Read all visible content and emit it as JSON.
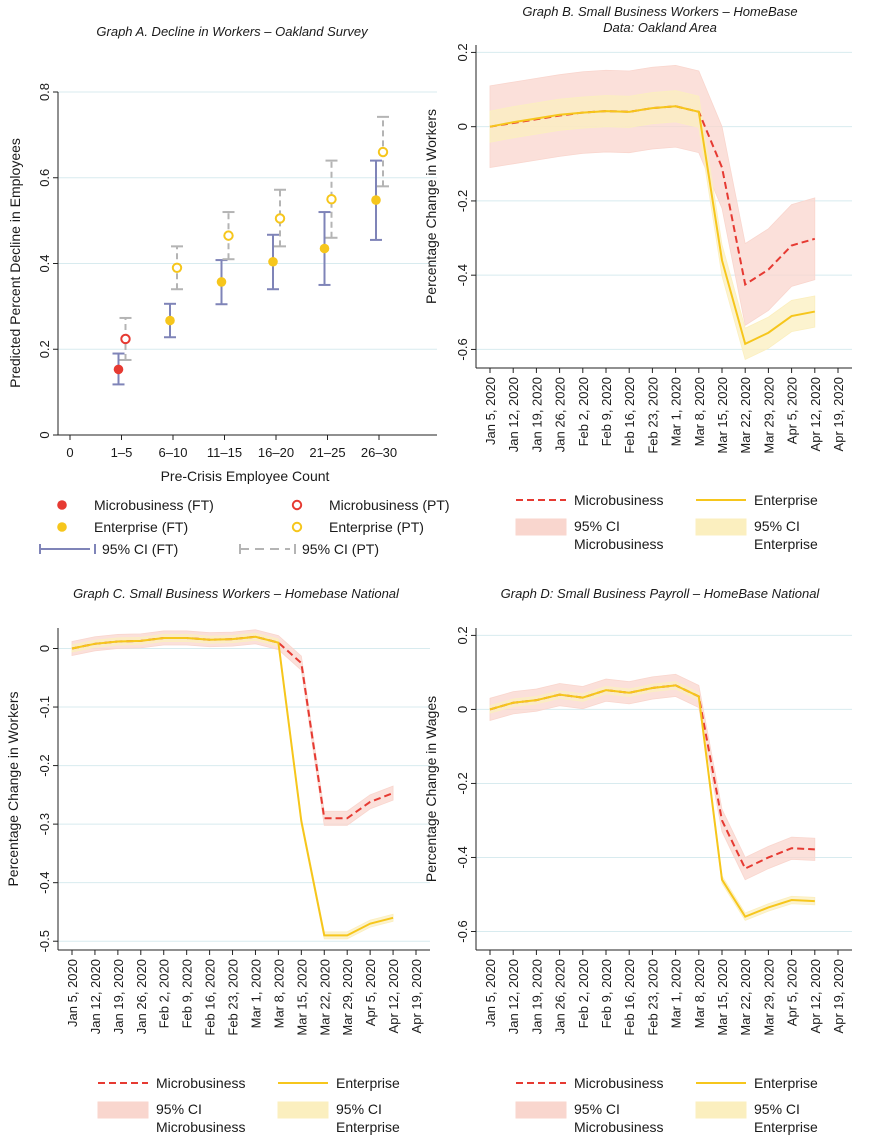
{
  "colors": {
    "micro": "#e63a32",
    "enterprise": "#f6c61c",
    "micro_band": "#f9d6ce",
    "enterprise_band": "#fbefbf",
    "ci_ft": "#7f84b8",
    "ci_pt": "#b4b4b4",
    "grid": "#d8ebef"
  },
  "chart_data": [
    {
      "id": "A",
      "type": "scatter",
      "title": "Graph A. Decline in Workers – Oakland Survey",
      "xlabel": "Pre-Crisis Employee Count",
      "ylabel": "Predicted Percent Decline in Employees",
      "ylim": [
        0,
        0.8
      ],
      "categories": [
        "0",
        "1–5",
        "6–10",
        "11–15",
        "16–20",
        "21–25",
        "26–30"
      ],
      "yticks": [
        "0",
        "0.2",
        "0.4",
        "0.6",
        "0.8"
      ],
      "grid": true,
      "series": [
        {
          "name": "Microbusiness (FT)",
          "marker": "filled",
          "color": "micro",
          "points": [
            {
              "x": 1,
              "y": 0.153,
              "lo": 0.118,
              "hi": 0.19
            }
          ]
        },
        {
          "name": "Microbusiness (PT)",
          "marker": "hollow",
          "color": "micro",
          "points": [
            {
              "x": 1,
              "y": 0.224,
              "lo": 0.175,
              "hi": 0.273
            }
          ]
        },
        {
          "name": "Enterprise (FT)",
          "marker": "filled",
          "color": "enterprise",
          "points": [
            {
              "x": 2,
              "y": 0.267,
              "lo": 0.228,
              "hi": 0.306
            },
            {
              "x": 3,
              "y": 0.357,
              "lo": 0.305,
              "hi": 0.408
            },
            {
              "x": 4,
              "y": 0.404,
              "lo": 0.34,
              "hi": 0.467
            },
            {
              "x": 5,
              "y": 0.435,
              "lo": 0.35,
              "hi": 0.52
            },
            {
              "x": 6,
              "y": 0.548,
              "lo": 0.455,
              "hi": 0.64
            }
          ]
        },
        {
          "name": "Enterprise (PT)",
          "marker": "hollow",
          "color": "enterprise",
          "points": [
            {
              "x": 2,
              "y": 0.39,
              "lo": 0.34,
              "hi": 0.44
            },
            {
              "x": 3,
              "y": 0.465,
              "lo": 0.41,
              "hi": 0.52
            },
            {
              "x": 4,
              "y": 0.505,
              "lo": 0.44,
              "hi": 0.572
            },
            {
              "x": 5,
              "y": 0.55,
              "lo": 0.46,
              "hi": 0.64
            },
            {
              "x": 6,
              "y": 0.66,
              "lo": 0.58,
              "hi": 0.742
            }
          ]
        }
      ],
      "legend": {
        "position": "bottom",
        "items": [
          "Microbusiness (FT)",
          "Microbusiness (PT)",
          "Enterprise (FT)",
          "Enterprise (PT)",
          "95% CI (FT)",
          "95% CI (PT)"
        ]
      }
    },
    {
      "id": "B",
      "type": "line",
      "title": "Graph B. Small Business Workers – HomeBase",
      "subtitle": "Data: Oakland Area",
      "xlabel": "",
      "ylabel": "Percentage Change in Workers",
      "ylim": [
        -0.65,
        0.22
      ],
      "yticks": [
        -0.6,
        -0.4,
        -0.2,
        0,
        0.2
      ],
      "ytick_labels": [
        "-0.6",
        "-0.4",
        "-0.2",
        "0",
        "0.2"
      ],
      "grid": true,
      "x": [
        "Jan 5, 2020",
        "Jan 12, 2020",
        "Jan 19, 2020",
        "Jan 26, 2020",
        "Feb 2, 2020",
        "Feb 9, 2020",
        "Feb 16, 2020",
        "Feb 23, 2020",
        "Mar 1, 2020",
        "Mar 8, 2020",
        "Mar 15, 2020",
        "Mar 22, 2020",
        "Mar 29, 2020",
        "Apr 5, 2020",
        "Apr 12, 2020",
        "Apr 19, 2020"
      ],
      "series": [
        {
          "name": "Microbusiness",
          "style": "dashed",
          "color": "micro",
          "values": [
            0.0,
            0.01,
            0.02,
            0.03,
            0.038,
            0.042,
            0.04,
            0.05,
            0.055,
            0.04,
            -0.11,
            -0.425,
            -0.385,
            -0.32,
            -0.302,
            null
          ],
          "ci_half": 0.11
        },
        {
          "name": "Enterprise",
          "style": "solid",
          "color": "enterprise",
          "values": [
            0.0,
            0.012,
            0.022,
            0.032,
            0.038,
            0.042,
            0.04,
            0.05,
            0.055,
            0.04,
            -0.36,
            -0.585,
            -0.555,
            -0.51,
            -0.498,
            null
          ],
          "ci_half": 0.042
        }
      ],
      "legend": {
        "position": "bottom",
        "items": [
          "Microbusiness",
          "Enterprise",
          "95% CI",
          "Microbusiness",
          "95% CI",
          "Enterprise"
        ]
      }
    },
    {
      "id": "C",
      "type": "line",
      "title": "Graph C. Small Business Workers – Homebase National",
      "xlabel": "",
      "ylabel": "Percentage Change in Workers",
      "ylim": [
        -0.515,
        0.035
      ],
      "yticks": [
        -0.5,
        -0.4,
        -0.3,
        -0.2,
        -0.1,
        0
      ],
      "ytick_labels": [
        "-0.5",
        "-0.4",
        "-0.3",
        "-0.2",
        "-0.1",
        "0"
      ],
      "grid": true,
      "x": [
        "Jan 5, 2020",
        "Jan 12, 2020",
        "Jan 19, 2020",
        "Jan 26, 2020",
        "Feb 2, 2020",
        "Feb 9, 2020",
        "Feb 16, 2020",
        "Feb 23, 2020",
        "Mar 1, 2020",
        "Mar 8, 2020",
        "Mar 15, 2020",
        "Mar 22, 2020",
        "Mar 29, 2020",
        "Apr 5, 2020",
        "Apr 12, 2020",
        "Apr 19, 2020"
      ],
      "series": [
        {
          "name": "Microbusiness",
          "style": "dashed",
          "color": "micro",
          "values": [
            0.0,
            0.008,
            0.012,
            0.013,
            0.018,
            0.018,
            0.015,
            0.016,
            0.02,
            0.01,
            -0.025,
            -0.29,
            -0.29,
            -0.262,
            -0.247,
            null
          ],
          "ci_half": 0.012
        },
        {
          "name": "Enterprise",
          "style": "solid",
          "color": "enterprise",
          "values": [
            0.0,
            0.008,
            0.012,
            0.013,
            0.018,
            0.018,
            0.015,
            0.016,
            0.02,
            0.01,
            -0.295,
            -0.49,
            -0.49,
            -0.47,
            -0.46,
            null
          ],
          "ci_half": 0.006
        }
      ],
      "legend": {
        "position": "bottom",
        "items": [
          "Microbusiness",
          "Enterprise",
          "95% CI",
          "Microbusiness",
          "95% CI",
          "Enterprise"
        ]
      }
    },
    {
      "id": "D",
      "type": "line",
      "title": "Graph D: Small Business Payroll – HomeBase National",
      "xlabel": "",
      "ylabel": "Percentage Change in Wages",
      "ylim": [
        -0.65,
        0.22
      ],
      "yticks": [
        -0.6,
        -0.4,
        -0.2,
        0,
        0.2
      ],
      "ytick_labels": [
        "-0.6",
        "-0.4",
        "-0.2",
        "0",
        "0.2"
      ],
      "grid": true,
      "x": [
        "Jan 5, 2020",
        "Jan 12, 2020",
        "Jan 19, 2020",
        "Jan 26, 2020",
        "Feb 2, 2020",
        "Feb 9, 2020",
        "Feb 16, 2020",
        "Feb 23, 2020",
        "Mar 1, 2020",
        "Mar 8, 2020",
        "Mar 15, 2020",
        "Mar 22, 2020",
        "Mar 29, 2020",
        "Apr 5, 2020",
        "Apr 12, 2020",
        "Apr 19, 2020"
      ],
      "series": [
        {
          "name": "Microbusiness",
          "style": "dashed",
          "color": "micro",
          "values": [
            0.0,
            0.018,
            0.025,
            0.04,
            0.032,
            0.052,
            0.045,
            0.058,
            0.065,
            0.035,
            -0.3,
            -0.43,
            -0.4,
            -0.375,
            -0.378,
            null
          ],
          "ci_half": 0.03
        },
        {
          "name": "Enterprise",
          "style": "solid",
          "color": "enterprise",
          "values": [
            0.0,
            0.018,
            0.025,
            0.04,
            0.032,
            0.052,
            0.045,
            0.058,
            0.065,
            0.035,
            -0.46,
            -0.56,
            -0.535,
            -0.515,
            -0.518,
            null
          ],
          "ci_half": 0.01
        }
      ],
      "legend": {
        "position": "bottom",
        "items": [
          "Microbusiness",
          "Enterprise",
          "95% CI",
          "Microbusiness",
          "95% CI",
          "Enterprise"
        ]
      }
    }
  ]
}
